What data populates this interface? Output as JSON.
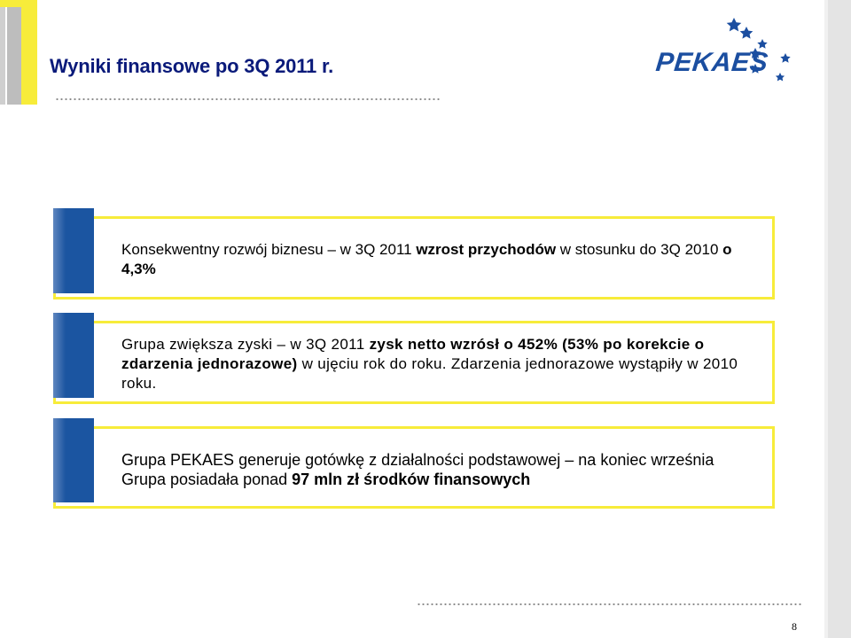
{
  "slide": {
    "title": "Wyniki finansowe po 3Q 2011 r.",
    "page_number": "8"
  },
  "logo": {
    "text": "PEKAES",
    "star_color": "#1b4ea0"
  },
  "colors": {
    "title": "#0a1a7a",
    "accent_yellow": "#f7ec3a",
    "accent_blue": "#1b55a1"
  },
  "boxes": [
    {
      "p1": "Konsekwentny rozwój biznesu – w 3Q 2011 ",
      "b1": "wzrost przychodów",
      "p2": " w stosunku do 3Q 2010 ",
      "b2": "o 4,3%"
    },
    {
      "p1": "Grupa zwiększa zyski – w 3Q 2011 ",
      "b1": "zysk netto wzrósł o 452% (53% po korekcie o zdarzenia jednorazowe)",
      "p2": " w ujęciu rok do roku. Zdarzenia jednorazowe wystąpiły w 2010 roku."
    },
    {
      "p1": "Grupa PEKAES generuje gotówkę z działalności podstawowej – na koniec września Grupa posiadała ponad ",
      "b1": "97 mln zł środków finansowych"
    }
  ]
}
